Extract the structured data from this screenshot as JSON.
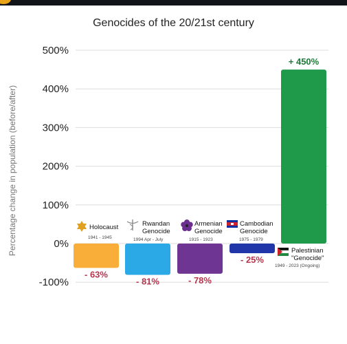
{
  "chart_data": {
    "type": "bar",
    "title": "Genocides of the 20/21st century",
    "ylabel": "Percentage change in population (before/after)",
    "ylim": [
      -100,
      500
    ],
    "yticks": [
      "500%",
      "400%",
      "300%",
      "200%",
      "100%",
      "0%",
      "-100%"
    ],
    "grid": true,
    "categories": [
      {
        "name": [
          "Holocaust"
        ],
        "dates": "1941 - 1945",
        "value": -63,
        "label": "- 63%",
        "color": "#f9ae3a",
        "icon": "star-of-david-icon"
      },
      {
        "name": [
          "Rwandan",
          "Genocide"
        ],
        "dates": "1994 Apr - July",
        "value": -81,
        "label": "- 81%",
        "color": "#2aa9e6",
        "icon": "caduceus-icon"
      },
      {
        "name": [
          "Armenian",
          "Genocide"
        ],
        "dates": "1915 - 1923",
        "value": -78,
        "label": "- 78%",
        "color": "#6e3592",
        "icon": "forget-me-not-icon"
      },
      {
        "name": [
          "Cambodian",
          "Genocide"
        ],
        "dates": "1975 - 1979",
        "value": -25,
        "label": "- 25%",
        "color": "#2136a8",
        "icon": "cambodia-flag-icon"
      },
      {
        "name": [
          "Palestinian",
          "\"Genocide\""
        ],
        "dates": "1949 - 2023 (Ongoing)",
        "value": 450,
        "label": "+ 450%",
        "color": "#1f9a4b",
        "icon": "palestine-flag-icon"
      }
    ],
    "negative_label_color": "#b5364e",
    "positive_label_color": "#1f7a3a"
  }
}
